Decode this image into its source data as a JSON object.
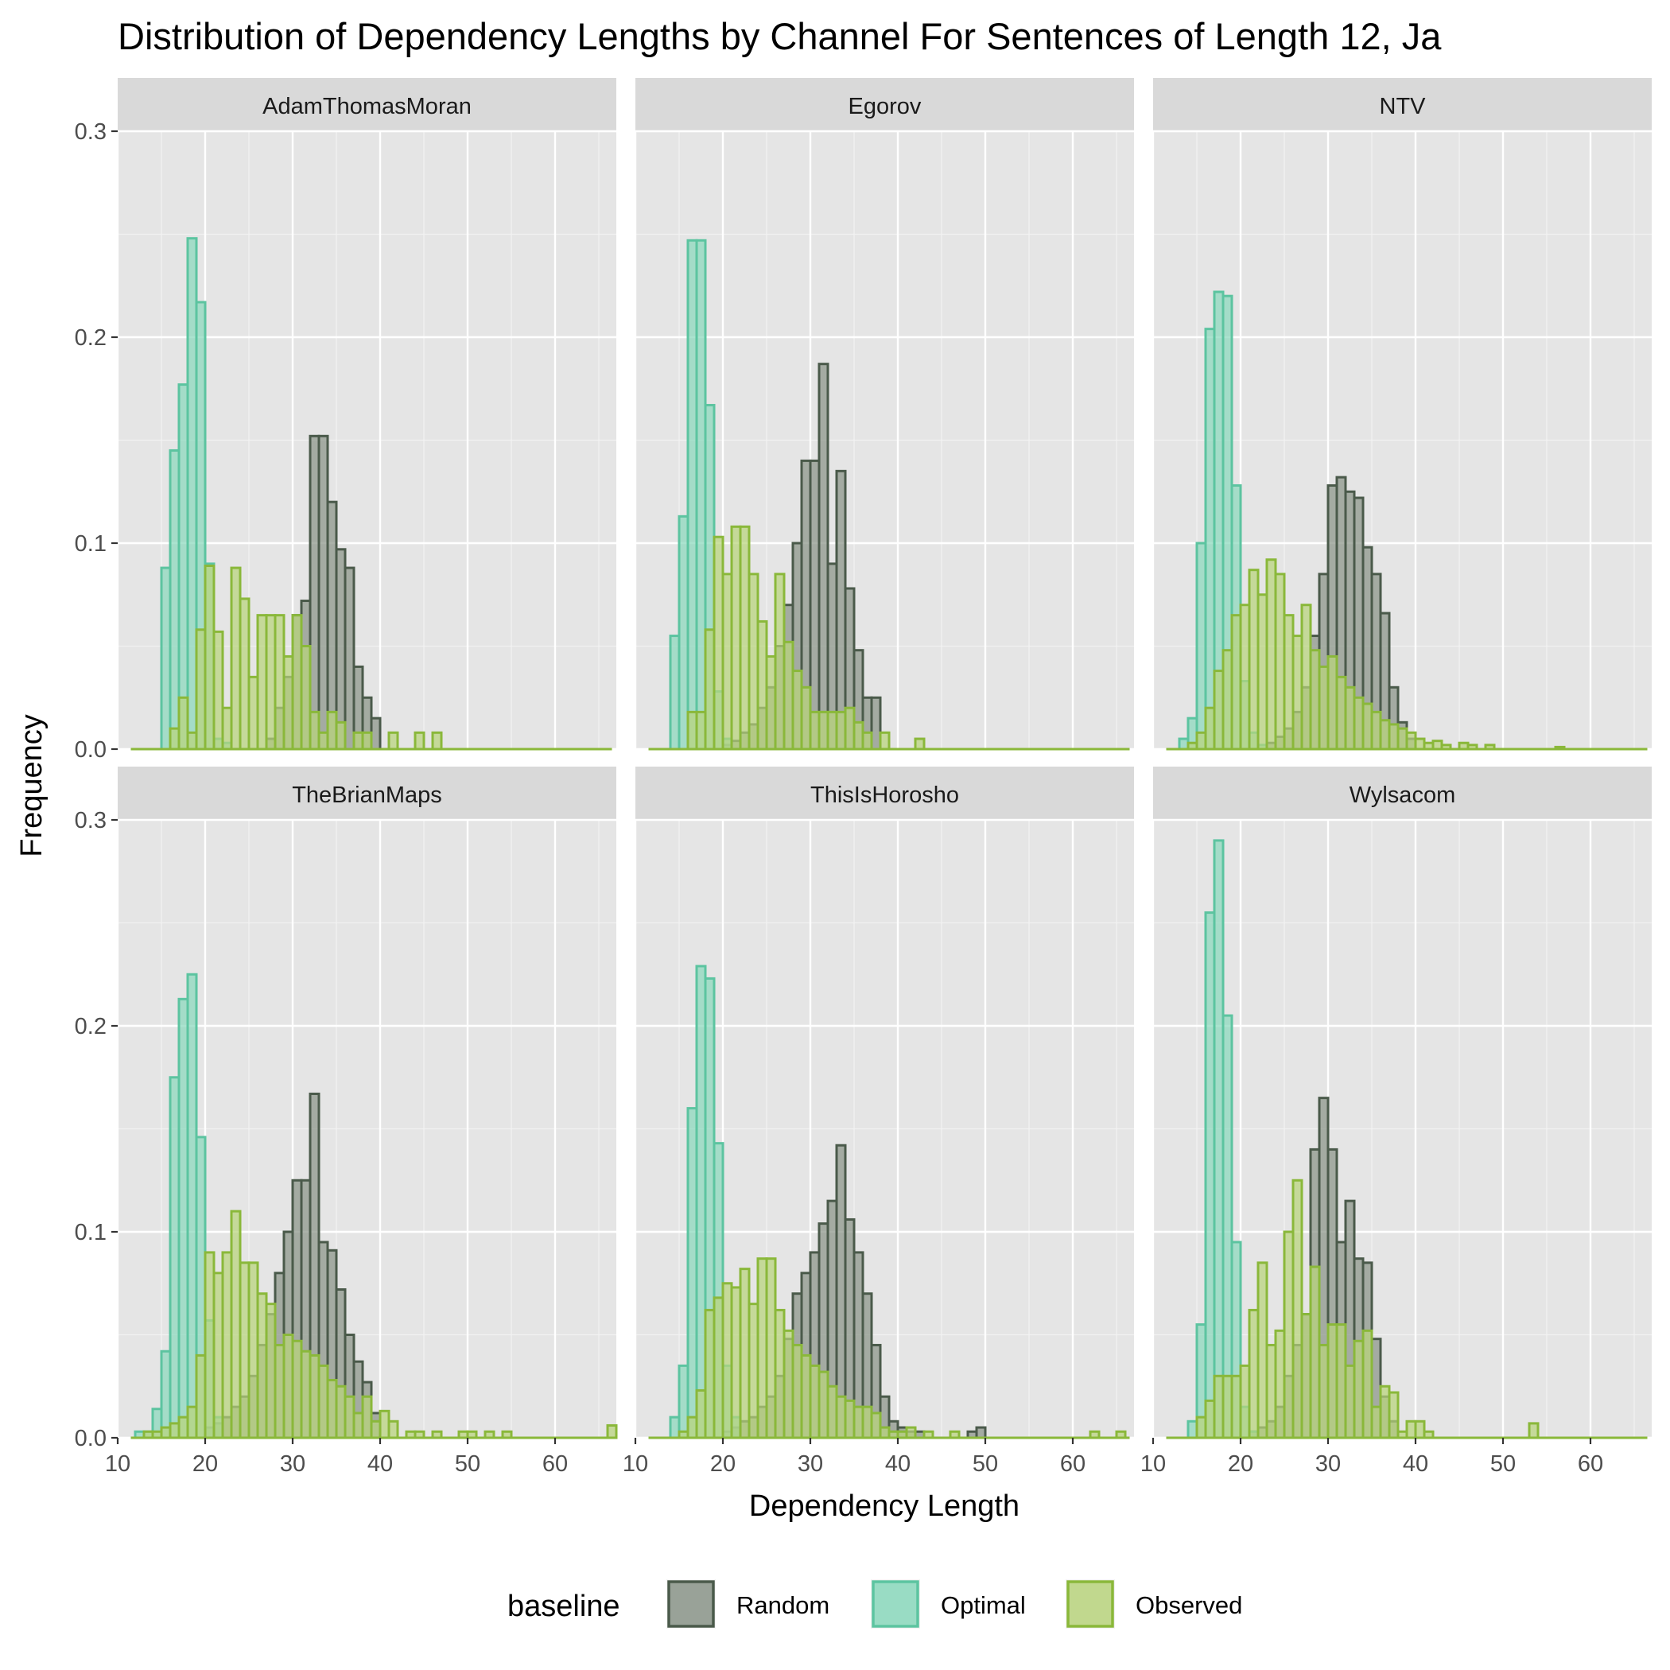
{
  "chart_data": {
    "type": "histogram",
    "title": "Distribution of Dependency Lengths by Channel For Sentences of Length 12, Ja",
    "xlabel": "Dependency Length",
    "ylabel": "Frequency",
    "xlim": [
      10,
      67
    ],
    "ylim": [
      0,
      0.3
    ],
    "x_ticks": [
      10,
      20,
      30,
      40,
      50,
      60
    ],
    "y_ticks": [
      0.0,
      0.1,
      0.2,
      0.3
    ],
    "y_tick_labels": [
      "0.0",
      "0.1",
      "0.2",
      "0.3"
    ],
    "grid": true,
    "bin_width": 1,
    "legend": {
      "title": "baseline",
      "position": "bottom",
      "entries": [
        {
          "name": "Random",
          "stroke": "#4a5a4a",
          "fill": "#8a9488"
        },
        {
          "name": "Optimal",
          "stroke": "#5cc4a0",
          "fill": "#8ad8bc"
        },
        {
          "name": "Observed",
          "stroke": "#8ab83a",
          "fill": "#b8d47c"
        }
      ]
    },
    "panels": [
      {
        "channel": "AdamThomasMoran",
        "series": [
          {
            "name": "Random",
            "x_start": 21,
            "values": [
              0,
              0,
              0,
              0,
              0,
              0,
              0.005,
              0.02,
              0.035,
              0.065,
              0.072,
              0.152,
              0.152,
              0.12,
              0.097,
              0.088,
              0.04,
              0.025,
              0.015
            ]
          },
          {
            "name": "Optimal",
            "x_start": 15,
            "values": [
              0.088,
              0.145,
              0.177,
              0.248,
              0.217,
              0.09,
              0.005,
              0.003
            ]
          },
          {
            "name": "Observed",
            "x_start": 15,
            "values": [
              0,
              0.01,
              0.025,
              0.008,
              0.058,
              0.089,
              0.057,
              0.02,
              0.088,
              0.073,
              0.035,
              0.065,
              0.065,
              0.065,
              0.045,
              0.065,
              0.05,
              0.018,
              0.008,
              0.018,
              0.013,
              0,
              0.008,
              0.008,
              0,
              0,
              0.008,
              0,
              0,
              0.008,
              0,
              0.008
            ]
          }
        ]
      },
      {
        "channel": "Egorov",
        "series": [
          {
            "name": "Random",
            "x_start": 19,
            "values": [
              0,
              0.002,
              0.004,
              0.008,
              0.012,
              0.02,
              0.03,
              0.05,
              0.07,
              0.1,
              0.14,
              0.14,
              0.187,
              0.09,
              0.135,
              0.078,
              0.048,
              0.025,
              0.025
            ]
          },
          {
            "name": "Optimal",
            "x_start": 14,
            "values": [
              0.055,
              0.113,
              0.247,
              0.247,
              0.167,
              0.028,
              0.005
            ]
          },
          {
            "name": "Observed",
            "x_start": 15,
            "values": [
              0,
              0.018,
              0.018,
              0.058,
              0.103,
              0.085,
              0.108,
              0.108,
              0.085,
              0.062,
              0.045,
              0.085,
              0.052,
              0.038,
              0.03,
              0.018,
              0.018,
              0.018,
              0.018,
              0.02,
              0.013,
              0.008,
              0,
              0.008,
              0,
              0,
              0,
              0.005
            ]
          }
        ]
      },
      {
        "channel": "NTV",
        "series": [
          {
            "name": "Random",
            "x_start": 23,
            "values": [
              0.003,
              0.006,
              0.01,
              0.018,
              0.03,
              0.055,
              0.085,
              0.128,
              0.132,
              0.125,
              0.122,
              0.098,
              0.085,
              0.066,
              0.03,
              0.013,
              0.005
            ]
          },
          {
            "name": "Optimal",
            "x_start": 13,
            "values": [
              0.005,
              0.015,
              0.1,
              0.204,
              0.222,
              0.22,
              0.128,
              0.033,
              0.008,
              0.002
            ]
          },
          {
            "name": "Observed",
            "x_start": 14,
            "values": [
              0.003,
              0.008,
              0.02,
              0.038,
              0.048,
              0.065,
              0.07,
              0.087,
              0.075,
              0.092,
              0.085,
              0.065,
              0.055,
              0.07,
              0.048,
              0.04,
              0.045,
              0.035,
              0.03,
              0.025,
              0.022,
              0.018,
              0.014,
              0.012,
              0.01,
              0.008,
              0.005,
              0.003,
              0.004,
              0.002,
              0,
              0.003,
              0.002,
              0,
              0.002,
              0,
              0,
              0,
              0,
              0,
              0,
              0,
              0.001
            ]
          }
        ]
      },
      {
        "channel": "TheBrianMaps",
        "series": [
          {
            "name": "Random",
            "x_start": 20,
            "values": [
              0.005,
              0.007,
              0.01,
              0.015,
              0.02,
              0.03,
              0.045,
              0.06,
              0.08,
              0.1,
              0.125,
              0.125,
              0.167,
              0.095,
              0.091,
              0.072,
              0.05,
              0.037,
              0.027,
              0.012
            ]
          },
          {
            "name": "Optimal",
            "x_start": 12,
            "values": [
              0.003,
              0.003,
              0.014,
              0.042,
              0.175,
              0.213,
              0.225,
              0.146,
              0.057,
              0.01
            ]
          },
          {
            "name": "Observed",
            "x_start": 12,
            "values": [
              0,
              0.003,
              0.003,
              0.005,
              0.007,
              0.01,
              0.015,
              0.04,
              0.09,
              0.08,
              0.09,
              0.11,
              0.085,
              0.085,
              0.07,
              0.065,
              0.045,
              0.05,
              0.047,
              0.042,
              0.04,
              0.035,
              0.028,
              0.025,
              0.02,
              0.012,
              0.02,
              0.008,
              0.013,
              0.008,
              0,
              0.003,
              0.003,
              0,
              0.003,
              0,
              0,
              0.003,
              0.003,
              0,
              0.003,
              0,
              0.003,
              0,
              0,
              0,
              0,
              0,
              0,
              0,
              0,
              0,
              0,
              0,
              0.006
            ]
          }
        ]
      },
      {
        "channel": "ThisIsHorosho",
        "series": [
          {
            "name": "Random",
            "x_start": 20,
            "values": [
              0.003,
              0.005,
              0.008,
              0.01,
              0.015,
              0.02,
              0.03,
              0.048,
              0.07,
              0.08,
              0.09,
              0.104,
              0.115,
              0.142,
              0.106,
              0.09,
              0.07,
              0.045,
              0.02,
              0.008,
              0.005,
              0.003,
              0.003,
              0,
              0,
              0,
              0,
              0,
              0.003,
              0.005
            ]
          },
          {
            "name": "Optimal",
            "x_start": 14,
            "values": [
              0.01,
              0.035,
              0.16,
              0.229,
              0.223,
              0.143,
              0.035,
              0.01
            ]
          },
          {
            "name": "Observed",
            "x_start": 15,
            "values": [
              0.003,
              0.01,
              0.023,
              0.062,
              0.068,
              0.075,
              0.073,
              0.082,
              0.065,
              0.087,
              0.087,
              0.062,
              0.052,
              0.045,
              0.04,
              0.035,
              0.032,
              0.025,
              0.02,
              0.018,
              0.015,
              0.015,
              0.012,
              0.005,
              0.003,
              0.003,
              0.005,
              0,
              0.003,
              0,
              0,
              0.003,
              0,
              0,
              0,
              0,
              0,
              0,
              0,
              0,
              0,
              0,
              0,
              0,
              0,
              0,
              0,
              0.003,
              0,
              0,
              0.003,
              0,
              0,
              0,
              0,
              0,
              0.007
            ]
          }
        ]
      },
      {
        "channel": "Wylsacom",
        "series": [
          {
            "name": "Random",
            "x_start": 21,
            "values": [
              0.003,
              0.005,
              0.008,
              0.015,
              0.03,
              0.045,
              0.06,
              0.14,
              0.165,
              0.14,
              0.095,
              0.115,
              0.087,
              0.085,
              0.048,
              0.02,
              0.008
            ]
          },
          {
            "name": "Optimal",
            "x_start": 14,
            "values": [
              0.008,
              0.055,
              0.255,
              0.29,
              0.205,
              0.095,
              0.015,
              0.003
            ]
          },
          {
            "name": "Observed",
            "x_start": 15,
            "values": [
              0.01,
              0.018,
              0.03,
              0.03,
              0.03,
              0.035,
              0.062,
              0.085,
              0.045,
              0.052,
              0.1,
              0.125,
              0.06,
              0.083,
              0.045,
              0.055,
              0.055,
              0.035,
              0.047,
              0.052,
              0.015,
              0.025,
              0.022,
              0.003,
              0.008,
              0.008,
              0.003,
              0,
              0,
              0,
              0,
              0,
              0,
              0,
              0,
              0,
              0,
              0,
              0.007
            ]
          }
        ]
      }
    ]
  }
}
